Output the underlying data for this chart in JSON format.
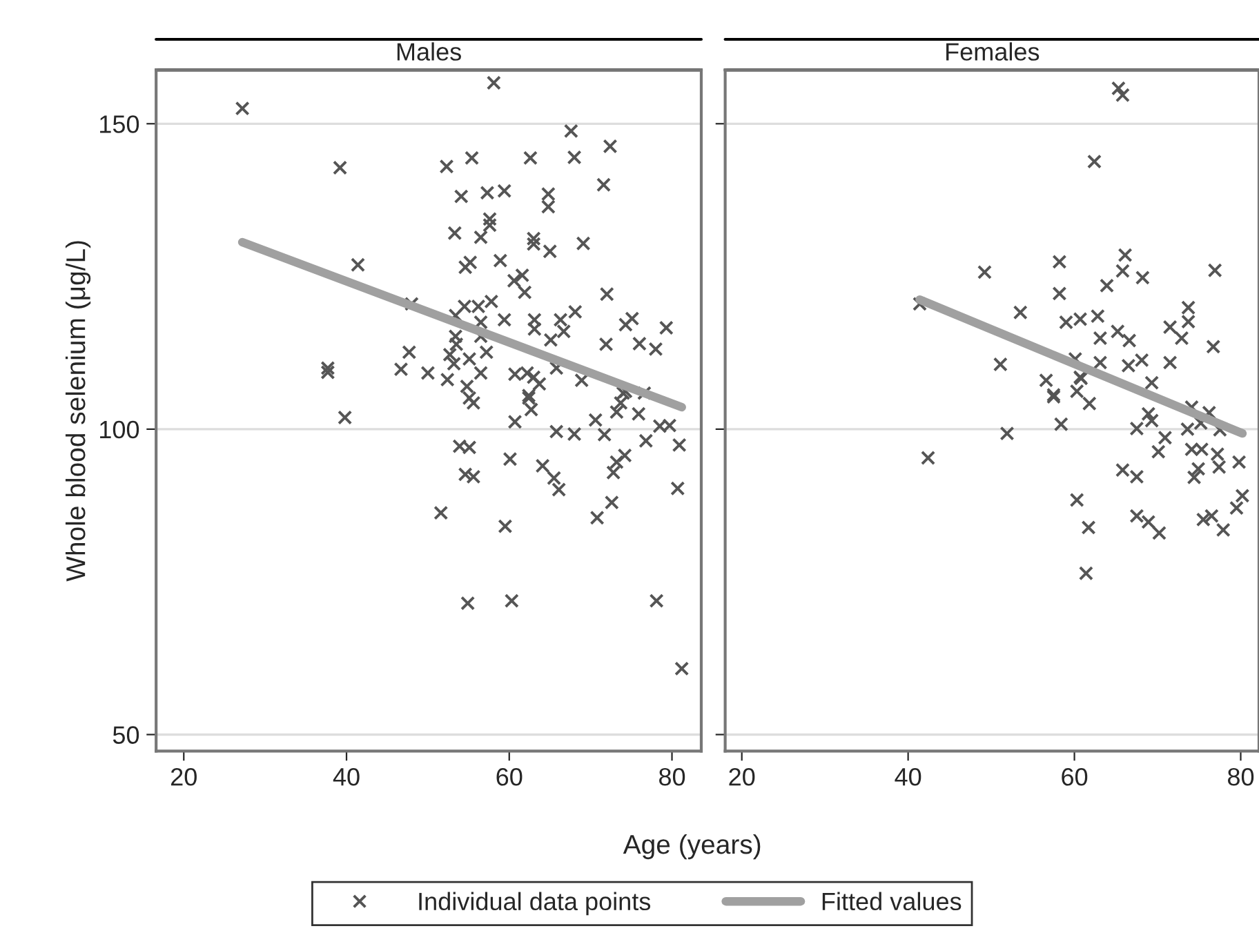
{
  "chart_data": [
    {
      "type": "scatter",
      "title": "Males",
      "xlabel": "Age (years)",
      "ylabel": "Whole blood selenium (μg/L)",
      "xlim": [
        16.6,
        83.6
      ],
      "ylim": [
        47.3,
        158.8
      ],
      "xticks": [
        20,
        40,
        60,
        80
      ],
      "yticks": [
        50,
        100,
        150
      ],
      "grid": "y",
      "legend": "bottom",
      "series": [
        {
          "name": "Individual data points",
          "marker": "cross",
          "color": "#555555",
          "x": [
            27.2,
            58.1,
            67.6,
            72.4,
            39.2,
            52.3,
            55.4,
            62.6,
            68.0,
            71.6,
            54.1,
            57.3,
            59.4,
            64.8,
            64.8,
            57.6,
            57.6,
            53.3,
            56.5,
            63.0,
            63.0,
            65.0,
            69.1,
            41.4,
            54.6,
            55.2,
            58.9,
            60.6,
            61.6,
            61.9,
            72.0,
            48.0,
            54.5,
            56.2,
            57.8,
            53.4,
            56.5,
            59.4,
            63.1,
            63.1,
            66.3,
            68.1,
            66.7,
            65.1,
            74.3,
            75.1,
            79.3,
            71.9,
            76.0,
            78.0,
            53.4,
            56.5,
            47.7,
            53.5,
            57.2,
            52.7,
            37.7,
            37.7,
            46.7,
            50.0,
            53.2,
            55.1,
            56.5,
            52.4,
            60.7,
            62.2,
            63.0,
            63.7,
            65.8,
            68.9,
            54.8,
            74.0,
            76.6,
            62.4,
            39.8,
            55.1,
            55.6,
            62.4,
            62.7,
            60.7,
            74.3,
            73.7,
            73.2,
            75.9,
            70.6,
            71.7,
            65.8,
            68.0,
            78.5,
            79.7,
            76.8,
            80.9,
            53.9,
            55.1,
            60.1,
            64.1,
            65.5,
            66.1,
            54.6,
            55.6,
            74.2,
            73.2,
            72.8,
            80.7,
            72.6,
            70.8,
            51.6,
            59.5,
            54.9,
            60.3,
            78.1,
            81.2
          ],
          "values": [
            152.5,
            156.7,
            148.8,
            146.3,
            142.8,
            143.0,
            144.4,
            144.4,
            144.5,
            140.0,
            138.1,
            138.7,
            139.0,
            138.5,
            136.4,
            134.4,
            133.4,
            132.1,
            131.4,
            131.2,
            130.3,
            129.1,
            130.4,
            126.9,
            126.5,
            127.3,
            127.6,
            124.3,
            125.2,
            122.4,
            122.1,
            120.5,
            120.1,
            120.1,
            120.9,
            118.6,
            117.5,
            117.9,
            117.9,
            116.4,
            117.9,
            119.2,
            116.0,
            114.6,
            117.1,
            118.1,
            116.6,
            113.9,
            114.0,
            113.1,
            115.2,
            115.2,
            112.6,
            113.9,
            112.6,
            112.2,
            110.0,
            109.3,
            109.8,
            109.2,
            110.7,
            111.5,
            109.2,
            108.1,
            109.0,
            109.2,
            108.5,
            107.4,
            110.0,
            108.0,
            107.0,
            105.9,
            105.9,
            105.5,
            101.9,
            105.1,
            104.3,
            105.1,
            103.2,
            101.2,
            106.2,
            104.3,
            102.8,
            102.5,
            101.5,
            99.1,
            99.6,
            99.2,
            100.5,
            100.6,
            98.1,
            97.4,
            97.2,
            97.0,
            95.1,
            94.0,
            92.0,
            90.1,
            92.6,
            92.2,
            95.7,
            94.6,
            92.9,
            90.3,
            88.0,
            85.5,
            86.3,
            84.1,
            71.5,
            71.9,
            71.9,
            60.8
          ]
        },
        {
          "name": "Fitted values",
          "type": "line",
          "color": "#a0a0a0",
          "x": [
            27.2,
            81.2
          ],
          "values": [
            130.6,
            103.6
          ]
        }
      ]
    },
    {
      "type": "scatter",
      "title": "Females",
      "xlim": [
        18,
        82.2
      ],
      "ylim": [
        47.3,
        158.8
      ],
      "xticks": [
        20,
        40,
        60,
        80
      ],
      "yticks": [
        50,
        100,
        150
      ],
      "grid": "y",
      "tick_labels": "x",
      "series": [
        {
          "marker": "cross",
          "color": "#555555",
          "x": [
            65.3,
            65.8,
            62.4,
            49.2,
            58.2,
            58.2,
            66.1,
            65.8,
            68.2,
            76.9,
            63.9,
            53.5,
            41.4,
            59.0,
            60.7,
            62.8,
            63.1,
            65.2,
            66.6,
            71.5,
            73.7,
            73.7,
            72.9,
            76.7,
            51.1,
            60.1,
            63.1,
            66.5,
            68.1,
            71.5,
            60.7,
            56.6,
            69.3,
            57.5,
            60.3,
            60.8,
            57.5,
            61.8,
            58.4,
            51.9,
            42.4,
            68.9,
            69.3,
            67.5,
            70.9,
            70.1,
            74.1,
            76.2,
            73.6,
            75.2,
            77.5,
            74.1,
            75.3,
            77.2,
            77.4,
            79.8,
            74.9,
            74.4,
            65.8,
            67.5,
            60.3,
            61.7,
            67.5,
            68.9,
            70.2,
            75.5,
            76.5,
            77.9,
            79.5,
            80.2,
            61.4
          ],
          "values": [
            155.8,
            154.7,
            143.8,
            125.7,
            127.4,
            122.2,
            128.5,
            125.9,
            124.8,
            126.0,
            123.5,
            119.1,
            120.5,
            117.5,
            118.0,
            118.5,
            114.9,
            116.0,
            114.5,
            116.7,
            119.9,
            117.6,
            114.9,
            113.5,
            110.6,
            111.5,
            110.9,
            110.4,
            111.3,
            110.9,
            108.5,
            108.0,
            107.6,
            105.6,
            106.2,
            108.3,
            105.3,
            104.2,
            100.8,
            99.3,
            95.3,
            102.5,
            101.4,
            100.1,
            98.6,
            96.3,
            103.6,
            102.7,
            100.0,
            101.0,
            99.9,
            96.7,
            96.7,
            95.9,
            93.8,
            94.6,
            93.5,
            92.1,
            93.3,
            92.2,
            88.4,
            83.9,
            85.8,
            84.8,
            83.0,
            85.2,
            85.8,
            83.5,
            87.1,
            89.1,
            76.4
          ]
        },
        {
          "type": "line",
          "color": "#a0a0a0",
          "x": [
            41.4,
            80.2
          ],
          "values": [
            121.2,
            99.3
          ]
        }
      ]
    }
  ]
}
